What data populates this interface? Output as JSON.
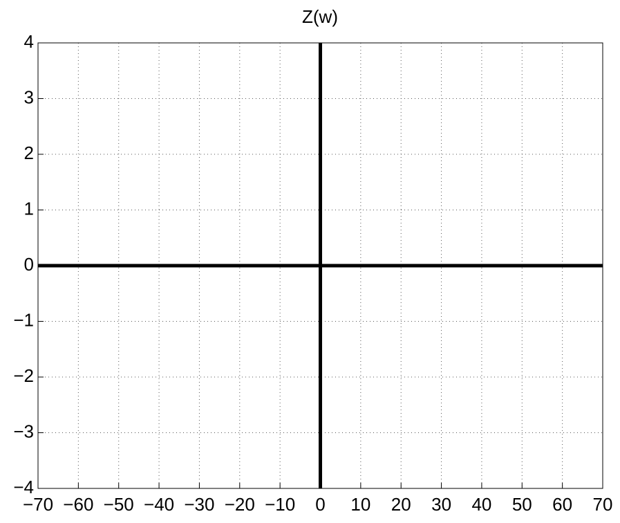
{
  "chart_data": {
    "type": "line",
    "title": "Z(w)",
    "series": [
      {
        "color": "#000000",
        "x": [
          -70,
          70
        ],
        "values": [
          0,
          0
        ]
      },
      {
        "color": "#000000",
        "x": [
          0,
          0
        ],
        "values": [
          -4,
          4
        ]
      }
    ],
    "xlim": [
      -70,
      70
    ],
    "xticks": [
      {
        "value": -70,
        "label": "−70"
      },
      {
        "value": -60,
        "label": "−60"
      },
      {
        "value": -50,
        "label": "−50"
      },
      {
        "value": -40,
        "label": "−40"
      },
      {
        "value": -30,
        "label": "−30"
      },
      {
        "value": -20,
        "label": "−20"
      },
      {
        "value": -10,
        "label": "−10"
      },
      0,
      10,
      20,
      30,
      40,
      50,
      60,
      70
    ],
    "ylim": [
      -4,
      4
    ],
    "yticks": [
      {
        "value": -4,
        "label": "−4"
      },
      {
        "value": -3,
        "label": "−3"
      },
      {
        "value": -2,
        "label": "−2"
      },
      {
        "value": -1,
        "label": "−1"
      },
      0,
      1,
      2,
      3,
      4
    ],
    "grid": true
  }
}
